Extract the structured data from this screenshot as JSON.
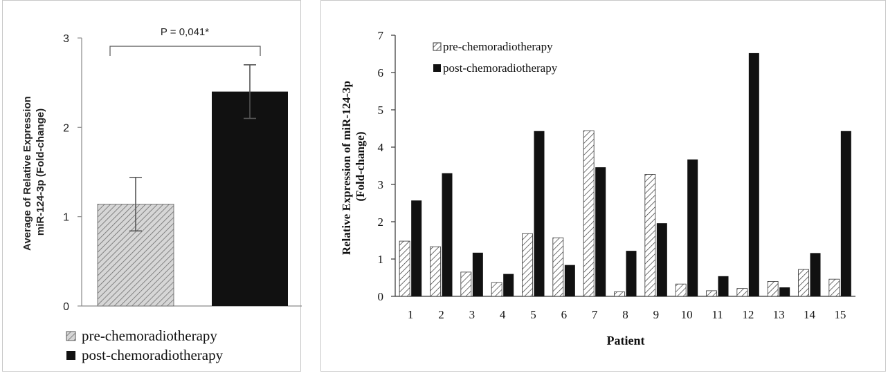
{
  "chart_data": [
    {
      "type": "bar",
      "categories": [
        "pre-chemoradiotherapy",
        "post-chemoradiotherapy"
      ],
      "values": [
        1.14,
        2.4
      ],
      "errors": [
        0.3,
        0.3
      ],
      "ylabel_line1": "Average of Relative Expression",
      "ylabel_line2": "miR-124-3p (Fold-change)",
      "ylim": [
        0,
        3
      ],
      "yticks": [
        "0",
        "1",
        "2",
        "3"
      ],
      "annotation": "P = 0,041*",
      "legend": [
        "pre-chemoradiotherapy",
        "post-chemoradiotherapy"
      ],
      "legend_position": "bottom",
      "fills": [
        "hatched-gray",
        "#111111"
      ]
    },
    {
      "type": "bar",
      "categories": [
        "1",
        "2",
        "3",
        "4",
        "5",
        "6",
        "7",
        "8",
        "9",
        "10",
        "11",
        "12",
        "13",
        "14",
        "15"
      ],
      "series": [
        {
          "name": "pre-chemoradiotherapy",
          "values": [
            1.48,
            1.33,
            0.65,
            0.37,
            1.68,
            1.57,
            4.44,
            0.12,
            3.27,
            0.33,
            0.15,
            0.21,
            0.4,
            0.72,
            0.46
          ]
        },
        {
          "name": "post-chemoradiotherapy",
          "values": [
            2.57,
            3.3,
            1.17,
            0.6,
            4.43,
            0.84,
            3.46,
            1.22,
            1.96,
            3.67,
            0.54,
            6.52,
            0.24,
            1.16,
            4.43
          ]
        }
      ],
      "xlabel": "Patient",
      "ylabel_line1": "Relative Expression of miR-124-3p",
      "ylabel_line2": "(Fold-change)",
      "ylim": [
        0,
        7
      ],
      "yticks": [
        "0",
        "1",
        "2",
        "3",
        "4",
        "5",
        "6",
        "7"
      ],
      "legend_position": "top-left",
      "fills": [
        "hatched-white",
        "#111111"
      ]
    }
  ]
}
